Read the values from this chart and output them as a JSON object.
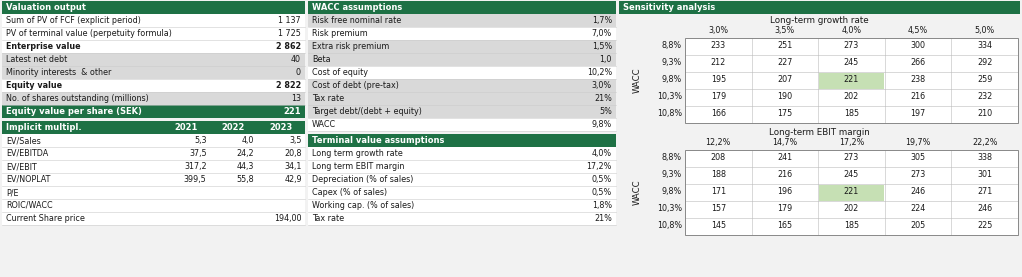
{
  "dark_green": "#1e7145",
  "light_gray": "#d9d9d9",
  "mid_gray": "#bfbfbf",
  "white": "#ffffff",
  "bg_color": "#f2f2f2",
  "text_dark": "#1a1a1a",
  "cell_highlight": "#c6e0b4",
  "val_output_header": "Valuation output",
  "val_rows": [
    [
      "Sum of PV of FCF (explicit period)",
      "1 137",
      false,
      false
    ],
    [
      "PV of terminal value (perpetuity formula)",
      "1 725",
      false,
      false
    ],
    [
      "Enterprise value",
      "2 862",
      true,
      false
    ],
    [
      "Latest net debt",
      "40",
      false,
      true
    ],
    [
      "Minority interests  & other",
      "0",
      false,
      true
    ],
    [
      "Equity value",
      "2 822",
      true,
      false
    ],
    [
      "No. of shares outstanding (millions)",
      "13",
      false,
      true
    ]
  ],
  "equity_per_share": [
    "Equity value per share (SEK)",
    "221"
  ],
  "impl_header": [
    "Implicit multipl.",
    "2021",
    "2022",
    "2023"
  ],
  "impl_rows": [
    [
      "EV/Sales",
      "5,3",
      "4,0",
      "3,5"
    ],
    [
      "EV/EBITDA",
      "37,5",
      "24,2",
      "20,8"
    ],
    [
      "EV/EBIT",
      "317,2",
      "44,3",
      "34,1"
    ],
    [
      "EV/NOPLAT",
      "399,5",
      "55,8",
      "42,9"
    ],
    [
      "P/E",
      "",
      "",
      ""
    ],
    [
      "ROIC/WACC",
      "",
      "",
      ""
    ],
    [
      "Current Share price",
      "",
      "",
      "194,00"
    ]
  ],
  "wacc_header": "WACC assumptions",
  "wacc_rows": [
    [
      "Risk free nominal rate",
      "1,7%",
      true
    ],
    [
      "Risk premium",
      "7,0%",
      false
    ],
    [
      "Extra risk premium",
      "1,5%",
      true
    ],
    [
      "Beta",
      "1,0",
      true
    ],
    [
      "Cost of equity",
      "10,2%",
      false
    ],
    [
      "Cost of debt (pre-tax)",
      "3,0%",
      true
    ],
    [
      "Tax rate",
      "21%",
      true
    ],
    [
      "Target debt/(debt + equity)",
      "5%",
      true
    ],
    [
      "WACC",
      "9,8%",
      false
    ]
  ],
  "tv_header": "Terminal value assumptions",
  "tv_rows": [
    [
      "Long term growth rate",
      "4,0%",
      false
    ],
    [
      "Long term EBIT margin",
      "17,2%",
      false
    ],
    [
      "Depreciation (% of sales)",
      "0,5%",
      false
    ],
    [
      "Capex (% of sales)",
      "0,5%",
      true
    ],
    [
      "Working cap. (% of sales)",
      "1,8%",
      false
    ],
    [
      "Tax rate",
      "21%",
      false
    ]
  ],
  "sens_header": "Sensitivity analysis",
  "sens1_title": "Long-term growth rate",
  "sens1_col_labels": [
    "3,0%",
    "3,5%",
    "4,0%",
    "4,5%",
    "5,0%"
  ],
  "sens1_row_labels": [
    "8,8%",
    "9,3%",
    "9,8%",
    "10,3%",
    "10,8%"
  ],
  "sens1_data": [
    [
      233,
      251,
      273,
      300,
      334
    ],
    [
      212,
      227,
      245,
      266,
      292
    ],
    [
      195,
      207,
      221,
      238,
      259
    ],
    [
      179,
      190,
      202,
      216,
      232
    ],
    [
      166,
      175,
      185,
      197,
      210
    ]
  ],
  "sens1_highlight_row": 2,
  "sens1_highlight_col": 2,
  "sens2_title": "Long-term EBIT margin",
  "sens2_col_labels": [
    "12,2%",
    "14,7%",
    "17,2%",
    "19,7%",
    "22,2%"
  ],
  "sens2_row_labels": [
    "8,8%",
    "9,3%",
    "9,8%",
    "10,3%",
    "10,8%"
  ],
  "sens2_data": [
    [
      208,
      241,
      273,
      305,
      338
    ],
    [
      188,
      216,
      245,
      273,
      301
    ],
    [
      171,
      196,
      221,
      246,
      271
    ],
    [
      157,
      179,
      202,
      224,
      246
    ],
    [
      145,
      165,
      185,
      205,
      225
    ]
  ],
  "sens2_highlight_row": 2,
  "sens2_highlight_col": 2
}
